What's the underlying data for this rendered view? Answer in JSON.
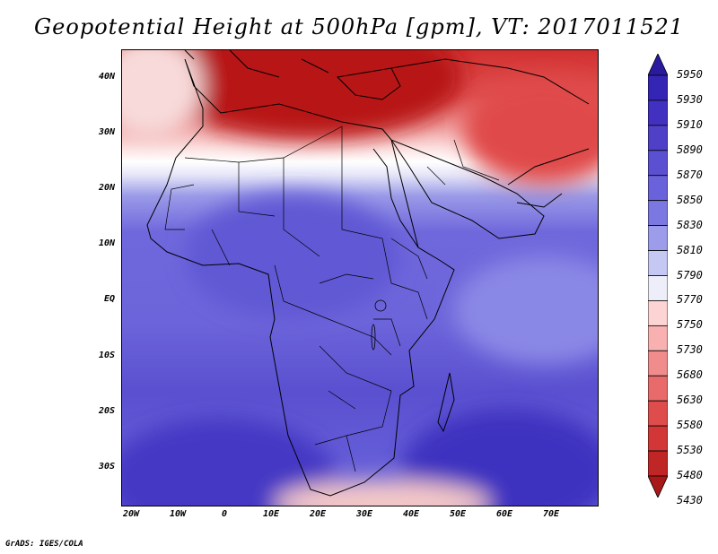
{
  "title": "Geopotential Height at 500hPa [gpm], VT: 2017011521",
  "credit": "GrADS: IGES/COLA",
  "map": {
    "lat_ticks": [
      "40N",
      "30N",
      "20N",
      "10N",
      "EQ",
      "10S",
      "20S",
      "30S"
    ],
    "lon_ticks": [
      "20W",
      "10W",
      "0",
      "10E",
      "20E",
      "30E",
      "40E",
      "50E",
      "60E",
      "70E"
    ],
    "lon_range": [
      -22,
      80
    ],
    "lat_range": [
      -37,
      45
    ]
  },
  "colorbar": {
    "levels": [
      "5950",
      "5930",
      "5910",
      "5890",
      "5870",
      "5850",
      "5830",
      "5810",
      "5790",
      "5770",
      "5750",
      "5730",
      "5680",
      "5630",
      "5580",
      "5530",
      "5480",
      "5430"
    ],
    "colors": [
      "#2a1aa0",
      "#3525b5",
      "#4230c0",
      "#5040c8",
      "#5c50d2",
      "#6a62da",
      "#7c78e2",
      "#9c9cea",
      "#c4c8f2",
      "#eeeefa",
      "#fcd4d4",
      "#f8b0b0",
      "#f08c8c",
      "#e86a6a",
      "#de4c4c",
      "#d23636",
      "#c02626",
      "#a81818"
    ]
  }
}
